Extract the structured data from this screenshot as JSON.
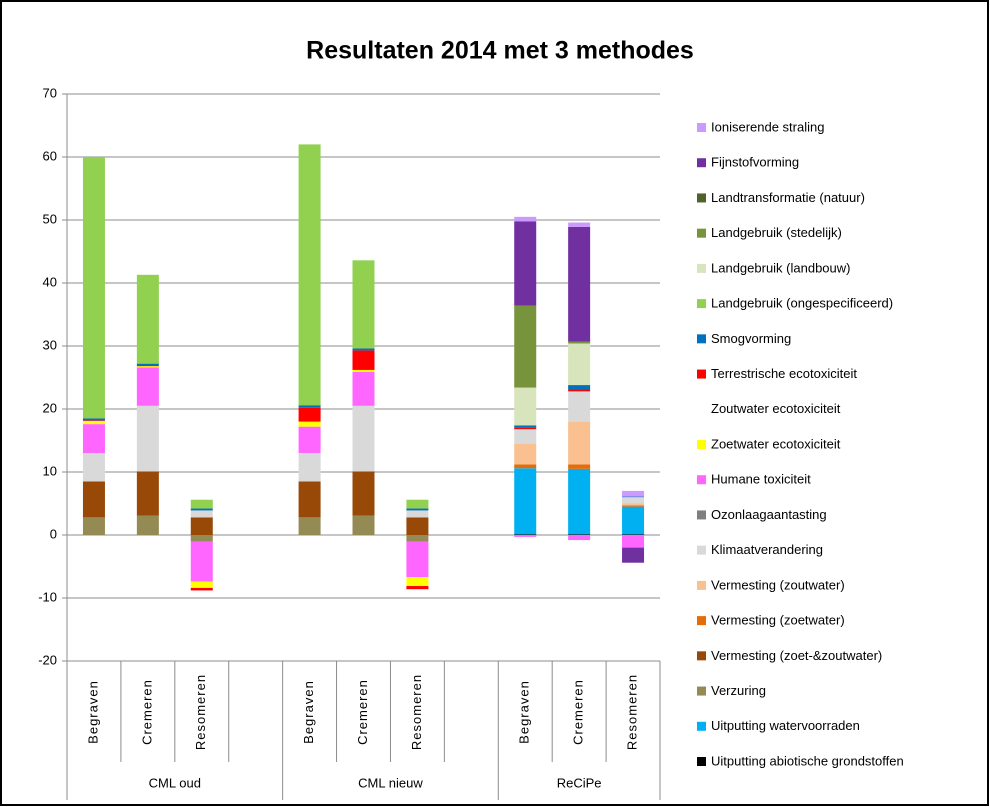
{
  "chart_data": {
    "type": "bar",
    "stacked": true,
    "title": "Resultaten 2014 met 3 methodes",
    "categories": [
      "Begraven",
      "Cremeren",
      "Resomeren",
      null,
      "Begraven",
      "Cremeren",
      "Resomeren",
      null,
      "Begraven",
      "Cremeren",
      "Resomeren"
    ],
    "group_labels": [
      "CML oud",
      "CML nieuw",
      "ReCiPe"
    ],
    "ylim": [
      -20,
      70
    ],
    "yticks": [
      -20,
      -10,
      0,
      10,
      20,
      30,
      40,
      50,
      60,
      70
    ],
    "grid": true,
    "legend": "right",
    "series": [
      {
        "name": "Uitputting abiotische grondstoffen",
        "color": "#000000",
        "values": [
          0,
          0,
          0,
          null,
          0,
          0,
          0,
          null,
          0.1,
          0.1,
          0.1
        ]
      },
      {
        "name": "Uitputting watervoorraden",
        "color": "#00b0f0",
        "values": [
          0,
          0,
          0,
          null,
          0,
          0,
          0,
          null,
          10.5,
          10.4,
          4.4
        ]
      },
      {
        "name": "Verzuring",
        "color": "#948a54",
        "values": [
          2.8,
          3.1,
          -1.0,
          null,
          2.8,
          3.1,
          -1.0,
          null,
          0,
          0,
          0
        ]
      },
      {
        "name": "Vermesting (zoet-&zoutwater)",
        "color": "#984807",
        "values": [
          5.7,
          7.0,
          2.8,
          null,
          5.7,
          7.0,
          2.8,
          null,
          0,
          0,
          0
        ]
      },
      {
        "name": "Vermesting (zoetwater)",
        "color": "#e46c0a",
        "values": [
          0,
          0,
          -0.1,
          null,
          0,
          0,
          -0.1,
          null,
          0.6,
          0.7,
          0.2
        ]
      },
      {
        "name": "Vermesting (zoutwater)",
        "color": "#fac090",
        "values": [
          0,
          0,
          0,
          null,
          0,
          0,
          0,
          null,
          3.3,
          6.8,
          0.3
        ]
      },
      {
        "name": "Klimaatverandering",
        "color": "#d9d9d9",
        "values": [
          4.5,
          10.4,
          1.1,
          null,
          4.5,
          10.4,
          1.1,
          null,
          2.3,
          4.8,
          1.0
        ]
      },
      {
        "name": "Ozonlaagaantasting",
        "color": "#7f7f7f",
        "values": [
          0,
          0,
          0,
          null,
          0,
          0,
          0,
          null,
          0,
          0,
          0
        ]
      },
      {
        "name": "Humane toxiciteit",
        "color": "#ff66ff",
        "values": [
          4.6,
          6.1,
          -6.3,
          null,
          4.2,
          5.4,
          -5.6,
          null,
          -0.3,
          -0.8,
          -2.0
        ]
      },
      {
        "name": "Zoetwater ecotoxiciteit",
        "color": "#ffff00",
        "values": [
          0.5,
          0.2,
          -1.0,
          null,
          0.8,
          0.3,
          -1.4,
          null,
          0,
          0,
          0
        ]
      },
      {
        "name": "Zoutwater ecotoxiciteit",
        "color": "#ffffff",
        "values": [
          0,
          0,
          0,
          null,
          0,
          0,
          0,
          null,
          0,
          0,
          0
        ]
      },
      {
        "name": "Terrestrische ecotoxiciteit",
        "color": "#ff0000",
        "values": [
          0.1,
          0.1,
          -0.4,
          null,
          2.2,
          3.1,
          -0.5,
          null,
          0.2,
          0.3,
          0
        ]
      },
      {
        "name": "Smogvorming",
        "color": "#0070c0",
        "values": [
          0.3,
          0.3,
          0.3,
          null,
          0.4,
          0.3,
          0.3,
          null,
          0.4,
          0.7,
          0.1
        ]
      },
      {
        "name": "Landgebruik (ongespecificeerd)",
        "color": "#92d050",
        "values": [
          41.5,
          14.1,
          1.4,
          null,
          41.4,
          14.0,
          1.4,
          null,
          0,
          0,
          0
        ]
      },
      {
        "name": "Landgebruik (landbouw)",
        "color": "#d7e4bc",
        "values": [
          0,
          0,
          0,
          null,
          0,
          0,
          0,
          null,
          6.0,
          6.6,
          0
        ]
      },
      {
        "name": "Landgebruik (stedelijk)",
        "color": "#77933c",
        "values": [
          0,
          0,
          0,
          null,
          0,
          0,
          0,
          null,
          13.0,
          0.3,
          0
        ]
      },
      {
        "name": "Landtransformatie (natuur)",
        "color": "#4f6228",
        "values": [
          0,
          0,
          0,
          null,
          0,
          0,
          0,
          null,
          0,
          0,
          0
        ]
      },
      {
        "name": "Fijnstofvorming",
        "color": "#7030a0",
        "values": [
          0,
          0,
          0,
          null,
          0,
          0,
          0,
          null,
          13.4,
          18.2,
          -2.4
        ]
      },
      {
        "name": "Ioniserende straling",
        "color": "#cc99ff",
        "values": [
          0,
          0,
          0,
          null,
          0,
          0,
          0,
          null,
          0.7,
          0.7,
          0.9
        ]
      }
    ]
  }
}
